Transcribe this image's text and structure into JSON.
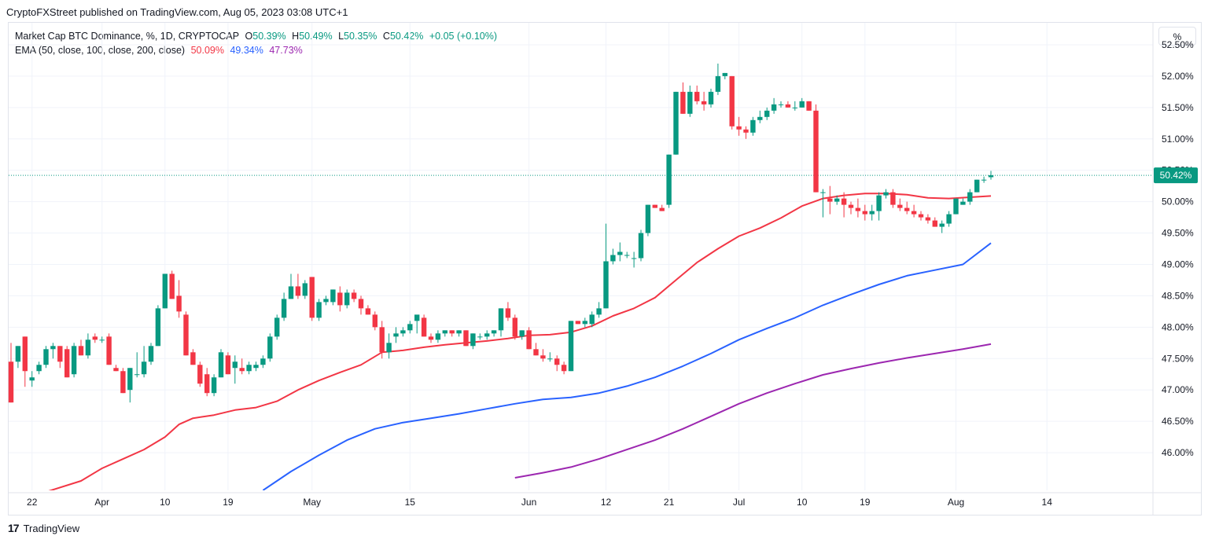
{
  "header": {
    "published": "CryptoFXStreet published on TradingView.com, Aug 05, 2023 03:08 UTC+1"
  },
  "legend": {
    "symbol": "Market Cap BTC Dominance, %, 1D, CRYPTOCAP",
    "o_label": "O",
    "o_value": "50.39%",
    "h_label": "H",
    "h_value": "50.49%",
    "l_label": "L",
    "l_value": "50.35%",
    "c_label": "C",
    "c_value": "50.42%",
    "change": "+0.05 (+0.10%)",
    "ema_label": "EMA (50, close, 100, close, 200, close)",
    "ema50": "50.09%",
    "ema100": "49.34%",
    "ema200": "47.73%"
  },
  "scale_button": "%",
  "footer": {
    "logo": "TradingView"
  },
  "colors": {
    "up": "#089981",
    "down": "#f23645",
    "ema50": "#f23645",
    "ema100": "#2962ff",
    "ema200": "#9c27b0",
    "price_line": "#089981"
  },
  "chart_data": {
    "type": "candlestick",
    "title": "Market Cap BTC Dominance, %, 1D, CRYPTOCAP",
    "y_unit": "%",
    "ylim": [
      45.4,
      52.85
    ],
    "y_ticks": [
      "46.00%",
      "46.50%",
      "47.00%",
      "47.50%",
      "48.00%",
      "48.50%",
      "49.00%",
      "49.50%",
      "50.00%",
      "50.50%",
      "51.00%",
      "51.50%",
      "52.00%",
      "52.50%"
    ],
    "y_tick_values": [
      46.0,
      46.5,
      47.0,
      47.5,
      48.0,
      48.5,
      49.0,
      49.5,
      50.0,
      50.5,
      51.0,
      51.5,
      52.0,
      52.5
    ],
    "x_ticks": [
      {
        "label": "22",
        "index": 3
      },
      {
        "label": "Apr",
        "index": 13
      },
      {
        "label": "10",
        "index": 22
      },
      {
        "label": "19",
        "index": 31
      },
      {
        "label": "May",
        "index": 43
      },
      {
        "label": "15",
        "index": 57
      },
      {
        "label": "Jun",
        "index": 74
      },
      {
        "label": "12",
        "index": 85
      },
      {
        "label": "21",
        "index": 94
      },
      {
        "label": "Jul",
        "index": 104
      },
      {
        "label": "10",
        "index": 113
      },
      {
        "label": "19",
        "index": 122
      },
      {
        "label": "Aug",
        "index": 135
      },
      {
        "label": "14",
        "index": 148
      }
    ],
    "candles": [
      [
        47.45,
        47.75,
        46.8,
        46.8
      ],
      [
        47.45,
        47.7,
        47.35,
        47.7
      ],
      [
        47.85,
        47.85,
        47.05,
        47.3
      ],
      [
        47.15,
        47.3,
        47.05,
        47.2
      ],
      [
        47.3,
        47.45,
        47.25,
        47.4
      ],
      [
        47.4,
        47.7,
        47.35,
        47.65
      ],
      [
        47.65,
        47.75,
        47.5,
        47.7
      ],
      [
        47.7,
        47.7,
        47.35,
        47.45
      ],
      [
        47.65,
        47.7,
        47.2,
        47.2
      ],
      [
        47.25,
        47.75,
        47.2,
        47.7
      ],
      [
        47.7,
        47.8,
        47.55,
        47.55
      ],
      [
        47.55,
        47.9,
        47.5,
        47.8
      ],
      [
        47.85,
        47.9,
        47.75,
        47.8
      ],
      [
        47.8,
        47.85,
        47.75,
        47.8
      ],
      [
        47.85,
        47.9,
        47.4,
        47.4
      ],
      [
        47.35,
        47.4,
        47.3,
        47.3
      ],
      [
        47.3,
        47.35,
        46.95,
        46.95
      ],
      [
        47.0,
        47.35,
        46.8,
        47.35
      ],
      [
        47.25,
        47.6,
        47.2,
        47.25
      ],
      [
        47.25,
        47.7,
        47.2,
        47.45
      ],
      [
        47.45,
        47.75,
        47.4,
        47.7
      ],
      [
        47.7,
        48.35,
        47.7,
        48.3
      ],
      [
        48.3,
        48.85,
        48.3,
        48.85
      ],
      [
        48.85,
        48.9,
        48.45,
        48.45
      ],
      [
        48.5,
        48.75,
        48.15,
        48.25
      ],
      [
        48.2,
        48.25,
        47.55,
        47.55
      ],
      [
        47.6,
        47.65,
        47.4,
        47.4
      ],
      [
        47.4,
        47.45,
        47.05,
        47.1
      ],
      [
        47.25,
        47.35,
        46.9,
        46.95
      ],
      [
        46.95,
        47.25,
        46.9,
        47.2
      ],
      [
        47.2,
        47.65,
        47.2,
        47.6
      ],
      [
        47.55,
        47.6,
        47.25,
        47.25
      ],
      [
        47.35,
        47.55,
        47.1,
        47.45
      ],
      [
        47.35,
        47.5,
        47.25,
        47.3
      ],
      [
        47.3,
        47.45,
        47.25,
        47.4
      ],
      [
        47.35,
        47.45,
        47.3,
        47.4
      ],
      [
        47.4,
        47.55,
        47.35,
        47.5
      ],
      [
        47.5,
        47.9,
        47.45,
        47.85
      ],
      [
        47.85,
        48.2,
        47.8,
        48.15
      ],
      [
        48.15,
        48.55,
        48.1,
        48.45
      ],
      [
        48.45,
        48.85,
        48.45,
        48.65
      ],
      [
        48.65,
        48.85,
        48.45,
        48.5
      ],
      [
        48.5,
        48.75,
        48.45,
        48.7
      ],
      [
        48.8,
        48.8,
        48.1,
        48.15
      ],
      [
        48.15,
        48.45,
        48.1,
        48.4
      ],
      [
        48.4,
        48.5,
        48.35,
        48.45
      ],
      [
        48.4,
        48.6,
        48.35,
        48.6
      ],
      [
        48.55,
        48.65,
        48.25,
        48.35
      ],
      [
        48.35,
        48.6,
        48.3,
        48.55
      ],
      [
        48.55,
        48.6,
        48.4,
        48.45
      ],
      [
        48.45,
        48.5,
        48.2,
        48.3
      ],
      [
        48.3,
        48.35,
        48.2,
        48.2
      ],
      [
        48.2,
        48.25,
        47.95,
        48.0
      ],
      [
        48.0,
        48.1,
        47.5,
        47.6
      ],
      [
        47.6,
        47.9,
        47.5,
        47.75
      ],
      [
        47.85,
        48.0,
        47.75,
        47.9
      ],
      [
        47.9,
        48.0,
        47.85,
        47.95
      ],
      [
        47.95,
        48.1,
        47.9,
        48.05
      ],
      [
        48.1,
        48.15,
        47.9,
        48.2
      ],
      [
        48.15,
        48.2,
        47.85,
        47.85
      ],
      [
        47.85,
        47.9,
        47.75,
        47.8
      ],
      [
        47.8,
        47.95,
        47.75,
        47.9
      ],
      [
        47.9,
        47.95,
        47.85,
        47.95
      ],
      [
        47.95,
        47.95,
        47.85,
        47.9
      ],
      [
        47.9,
        47.95,
        47.85,
        47.95
      ],
      [
        47.95,
        47.95,
        47.7,
        47.7
      ],
      [
        47.7,
        47.9,
        47.65,
        47.9
      ],
      [
        47.85,
        47.9,
        47.8,
        47.85
      ],
      [
        47.85,
        47.95,
        47.8,
        47.9
      ],
      [
        47.9,
        47.95,
        47.85,
        47.95
      ],
      [
        47.95,
        48.3,
        47.85,
        48.3
      ],
      [
        48.3,
        48.4,
        48.1,
        48.15
      ],
      [
        48.15,
        48.2,
        47.8,
        47.85
      ],
      [
        47.85,
        47.95,
        47.8,
        47.95
      ],
      [
        47.95,
        48.0,
        47.65,
        47.65
      ],
      [
        47.65,
        47.75,
        47.55,
        47.55
      ],
      [
        47.55,
        47.65,
        47.45,
        47.5
      ],
      [
        47.5,
        47.6,
        47.45,
        47.5
      ],
      [
        47.5,
        47.55,
        47.3,
        47.4
      ],
      [
        47.4,
        47.45,
        47.25,
        47.3
      ],
      [
        47.3,
        48.1,
        47.3,
        48.1
      ],
      [
        48.1,
        48.1,
        48.05,
        48.05
      ],
      [
        48.05,
        48.15,
        48.0,
        48.1
      ],
      [
        48.05,
        48.25,
        48.0,
        48.2
      ],
      [
        48.2,
        48.4,
        48.15,
        48.3
      ],
      [
        48.3,
        49.65,
        48.3,
        49.05
      ],
      [
        49.05,
        49.25,
        49.0,
        49.15
      ],
      [
        49.15,
        49.35,
        49.05,
        49.2
      ],
      [
        49.15,
        49.2,
        49.1,
        49.15
      ],
      [
        49.1,
        49.2,
        48.95,
        49.1
      ],
      [
        49.1,
        49.55,
        49.05,
        49.5
      ],
      [
        49.5,
        49.95,
        49.45,
        49.95
      ],
      [
        49.95,
        49.95,
        49.9,
        49.9
      ],
      [
        49.9,
        49.95,
        49.85,
        49.85
      ],
      [
        49.95,
        50.75,
        49.9,
        50.75
      ],
      [
        50.75,
        51.75,
        50.75,
        51.75
      ],
      [
        51.75,
        51.9,
        51.4,
        51.4
      ],
      [
        51.4,
        51.85,
        51.35,
        51.75
      ],
      [
        51.75,
        51.85,
        51.55,
        51.6
      ],
      [
        51.6,
        51.75,
        51.45,
        51.55
      ],
      [
        51.55,
        51.8,
        51.5,
        51.75
      ],
      [
        51.75,
        52.2,
        51.7,
        52.0
      ],
      [
        52.0,
        52.05,
        51.95,
        52.05
      ],
      [
        52.0,
        52.0,
        51.15,
        51.2
      ],
      [
        51.2,
        51.35,
        51.05,
        51.15
      ],
      [
        51.15,
        51.2,
        51.0,
        51.1
      ],
      [
        51.1,
        51.35,
        51.05,
        51.3
      ],
      [
        51.3,
        51.45,
        51.25,
        51.35
      ],
      [
        51.35,
        51.5,
        51.3,
        51.45
      ],
      [
        51.45,
        51.65,
        51.4,
        51.55
      ],
      [
        51.55,
        51.6,
        51.5,
        51.55
      ],
      [
        51.55,
        51.6,
        51.5,
        51.5
      ],
      [
        51.5,
        51.6,
        51.45,
        51.5
      ],
      [
        51.5,
        51.65,
        51.5,
        51.6
      ],
      [
        51.6,
        51.6,
        51.45,
        51.45
      ],
      [
        51.45,
        51.55,
        50.15,
        50.15
      ],
      [
        50.15,
        50.2,
        49.75,
        50.15
      ],
      [
        50.05,
        50.25,
        49.8,
        50.0
      ],
      [
        50.0,
        50.1,
        49.95,
        50.05
      ],
      [
        50.05,
        50.15,
        49.75,
        49.95
      ],
      [
        49.95,
        50.0,
        49.8,
        49.9
      ],
      [
        49.9,
        50.05,
        49.75,
        49.85
      ],
      [
        49.85,
        49.95,
        49.7,
        49.8
      ],
      [
        49.8,
        49.95,
        49.7,
        49.85
      ],
      [
        49.85,
        50.15,
        49.7,
        50.1
      ],
      [
        50.1,
        50.2,
        50.05,
        50.15
      ],
      [
        50.15,
        50.2,
        49.9,
        49.95
      ],
      [
        49.95,
        50.05,
        49.85,
        49.9
      ],
      [
        49.9,
        50.0,
        49.8,
        49.85
      ],
      [
        49.85,
        49.95,
        49.75,
        49.8
      ],
      [
        49.8,
        49.85,
        49.7,
        49.75
      ],
      [
        49.75,
        49.8,
        49.65,
        49.7
      ],
      [
        49.7,
        49.75,
        49.6,
        49.6
      ],
      [
        49.6,
        49.7,
        49.5,
        49.65
      ],
      [
        49.65,
        49.85,
        49.6,
        49.8
      ],
      [
        49.8,
        50.05,
        49.8,
        50.05
      ],
      [
        49.95,
        50.05,
        49.95,
        50.0
      ],
      [
        50.0,
        50.2,
        49.95,
        50.15
      ],
      [
        50.15,
        50.35,
        50.15,
        50.35
      ],
      [
        50.35,
        50.4,
        50.3,
        50.35
      ],
      [
        50.39,
        50.49,
        50.35,
        50.42
      ]
    ],
    "ema50": [
      [
        0,
        45.2
      ],
      [
        10,
        45.55
      ],
      [
        13,
        45.75
      ],
      [
        16,
        45.9
      ],
      [
        19,
        46.05
      ],
      [
        22,
        46.25
      ],
      [
        24,
        46.45
      ],
      [
        26,
        46.55
      ],
      [
        29,
        46.6
      ],
      [
        32,
        46.68
      ],
      [
        35,
        46.72
      ],
      [
        38,
        46.82
      ],
      [
        41,
        47.0
      ],
      [
        44,
        47.15
      ],
      [
        47,
        47.28
      ],
      [
        50,
        47.4
      ],
      [
        53,
        47.6
      ],
      [
        56,
        47.63
      ],
      [
        59,
        47.68
      ],
      [
        62,
        47.72
      ],
      [
        65,
        47.75
      ],
      [
        68,
        47.78
      ],
      [
        71,
        47.82
      ],
      [
        74,
        47.87
      ],
      [
        77,
        47.88
      ],
      [
        80,
        47.92
      ],
      [
        83,
        48.02
      ],
      [
        86,
        48.18
      ],
      [
        89,
        48.3
      ],
      [
        92,
        48.47
      ],
      [
        95,
        48.75
      ],
      [
        98,
        49.03
      ],
      [
        101,
        49.25
      ],
      [
        104,
        49.45
      ],
      [
        107,
        49.58
      ],
      [
        110,
        49.74
      ],
      [
        113,
        49.93
      ],
      [
        116,
        50.05
      ],
      [
        119,
        50.1
      ],
      [
        122,
        50.13
      ],
      [
        125,
        50.13
      ],
      [
        128,
        50.11
      ],
      [
        131,
        50.06
      ],
      [
        134,
        50.05
      ],
      [
        137,
        50.07
      ],
      [
        140,
        50.09
      ]
    ],
    "ema100": [
      [
        36,
        45.4
      ],
      [
        40,
        45.7
      ],
      [
        44,
        45.96
      ],
      [
        48,
        46.2
      ],
      [
        52,
        46.38
      ],
      [
        56,
        46.48
      ],
      [
        60,
        46.55
      ],
      [
        64,
        46.62
      ],
      [
        68,
        46.7
      ],
      [
        72,
        46.78
      ],
      [
        76,
        46.85
      ],
      [
        80,
        46.88
      ],
      [
        84,
        46.95
      ],
      [
        88,
        47.06
      ],
      [
        92,
        47.2
      ],
      [
        96,
        47.38
      ],
      [
        100,
        47.58
      ],
      [
        104,
        47.8
      ],
      [
        108,
        47.98
      ],
      [
        112,
        48.15
      ],
      [
        116,
        48.35
      ],
      [
        120,
        48.52
      ],
      [
        124,
        48.68
      ],
      [
        128,
        48.82
      ],
      [
        132,
        48.91
      ],
      [
        136,
        49.0
      ],
      [
        140,
        49.34
      ]
    ],
    "ema200": [
      [
        72,
        45.6
      ],
      [
        76,
        45.68
      ],
      [
        80,
        45.77
      ],
      [
        84,
        45.9
      ],
      [
        88,
        46.05
      ],
      [
        92,
        46.2
      ],
      [
        96,
        46.38
      ],
      [
        100,
        46.58
      ],
      [
        104,
        46.78
      ],
      [
        108,
        46.95
      ],
      [
        112,
        47.1
      ],
      [
        116,
        47.24
      ],
      [
        120,
        47.34
      ],
      [
        124,
        47.43
      ],
      [
        128,
        47.51
      ],
      [
        132,
        47.58
      ],
      [
        136,
        47.65
      ],
      [
        140,
        47.73
      ]
    ],
    "last_price_label": "50.42%",
    "last_price": 50.42
  }
}
